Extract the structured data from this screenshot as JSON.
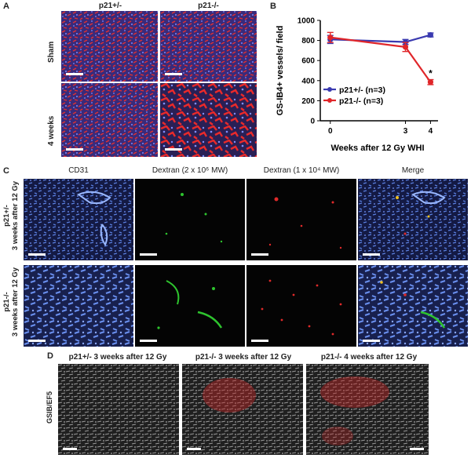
{
  "panel_A": {
    "letter": "A",
    "col_labels": [
      "p21+/-",
      "p21-/-"
    ],
    "row_labels": [
      "Sham",
      "4 weeks"
    ]
  },
  "panel_B": {
    "letter": "B"
  },
  "panel_C": {
    "letter": "C",
    "col_labels": [
      "CD31",
      "Dextran (2 x 10⁶ MW)",
      "Dextran (1 x 10⁴ MW)",
      "Merge"
    ],
    "row_labels": [
      {
        "genotype": "p21+/-",
        "timing": "3 weeks after 12 Gy"
      },
      {
        "genotype": "p21-/-",
        "timing": "3 weeks after 12 Gy"
      }
    ]
  },
  "panel_D": {
    "letter": "D",
    "col_labels": [
      "p21+/- 3 weeks after 12 Gy",
      "p21-/- 3 weeks after 12 Gy",
      "p21-/- 4 weeks after 12 Gy"
    ],
    "row_label": "GSIB/EF5"
  },
  "chart_data": {
    "type": "line",
    "title": "",
    "xlabel": "Weeks after 12 Gy WHI",
    "ylabel": "GS-IB4+ vessels/ field",
    "x": [
      0,
      3,
      4
    ],
    "xticks": [
      "0",
      "3",
      "4"
    ],
    "ylim": [
      0,
      1000
    ],
    "yticks": [
      "0",
      "200",
      "400",
      "600",
      "800",
      "1000"
    ],
    "grid": false,
    "legend_position": "left",
    "series": [
      {
        "name": "p21+/- (n=3)",
        "color": "#3a3ab0",
        "values": [
          810,
          785,
          855
        ],
        "errors": [
          40,
          25,
          20
        ]
      },
      {
        "name": "p21-/- (n=3)",
        "color": "#e0262a",
        "values": [
          830,
          735,
          385
        ],
        "errors": [
          50,
          45,
          25
        ]
      }
    ],
    "annotations": [
      {
        "x": 4,
        "text": "*"
      }
    ]
  }
}
